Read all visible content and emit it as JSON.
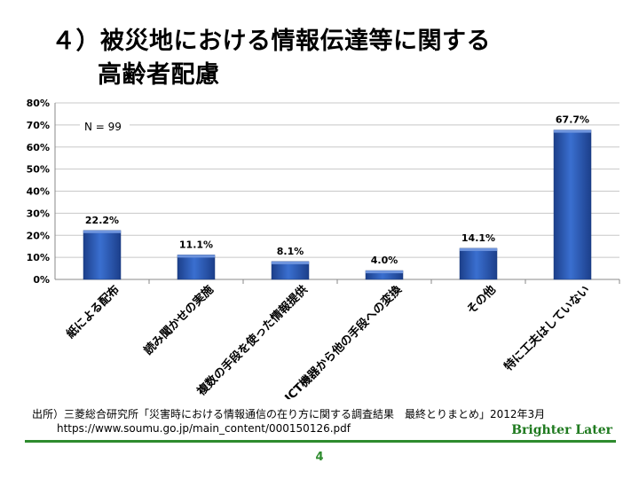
{
  "slide": {
    "title_line1": "４）被災地における情報伝達等に関する",
    "title_line2": "高齢者配慮",
    "source_line1": "出所）三菱総合研究所「災害時における情報通信の在り方に関する調査結果　最終とりまとめ」2012年3月",
    "source_line2": "https://www.soumu.go.jp/main_content/000150126.pdf",
    "brand": "Brighter Later",
    "page_number": "4",
    "brand_color": "#2e8b2e"
  },
  "chart_data": {
    "type": "bar",
    "categories": [
      "紙による配布",
      "読み聞かせの実施",
      "複数の手段を使った情報提供",
      "ICT機器から他の手段への変換",
      "その他",
      "特に工夫はしていない"
    ],
    "values": [
      22.2,
      11.1,
      8.1,
      4.0,
      14.1,
      67.7
    ],
    "data_labels": [
      "22.2%",
      "11.1%",
      "8.1%",
      "4.0%",
      "14.1%",
      "67.7%"
    ],
    "annotation": "N = 99",
    "ylim": [
      0,
      80
    ],
    "yticks": [
      0,
      10,
      20,
      30,
      40,
      50,
      60,
      70,
      80
    ],
    "ytick_labels": [
      "0%",
      "10%",
      "20%",
      "30%",
      "40%",
      "50%",
      "60%",
      "70%",
      "80%"
    ],
    "grid": true,
    "bar_color": "#2f5fb8"
  }
}
